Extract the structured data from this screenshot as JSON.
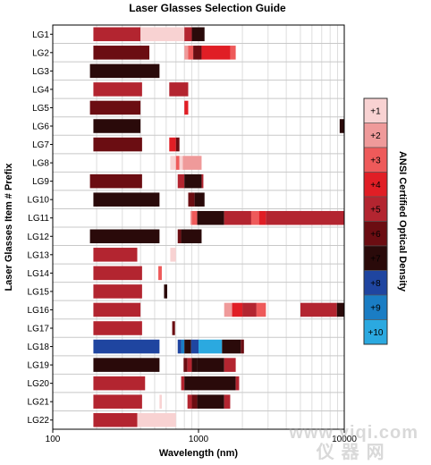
{
  "chart_data": {
    "type": "heatmap",
    "title": "Laser Glasses Selection Guide",
    "xlabel": "Wavelength (nm)",
    "ylabel": "Laser Glasses Item # Prefix",
    "colorbar_label": "ANSI Certified Optical Density",
    "x_scale": "log",
    "xlim": [
      100,
      10000
    ],
    "x_ticks": [
      "100",
      "1000",
      "10000"
    ],
    "legend": [
      {
        "label": "+1",
        "color": "#f8d2d2"
      },
      {
        "label": "+2",
        "color": "#ef9a9a"
      },
      {
        "label": "+3",
        "color": "#ee5a5a"
      },
      {
        "label": "+4",
        "color": "#e01e25"
      },
      {
        "label": "+5",
        "color": "#b32530"
      },
      {
        "label": "+6",
        "color": "#6b0d12"
      },
      {
        "label": "+7",
        "color": "#2a0a0a"
      },
      {
        "label": "+8",
        "color": "#1f45a0"
      },
      {
        "label": "+9",
        "color": "#1a7dc4"
      },
      {
        "label": "+10",
        "color": "#2ba9e0"
      }
    ],
    "rows": [
      {
        "name": "LG1",
        "bands": [
          [
            190,
            400,
            5
          ],
          [
            400,
            800,
            1
          ],
          [
            800,
            900,
            5
          ],
          [
            900,
            1100,
            7
          ]
        ]
      },
      {
        "name": "LG2",
        "bands": [
          [
            190,
            460,
            6
          ],
          [
            800,
            850,
            2
          ],
          [
            850,
            920,
            3
          ],
          [
            920,
            1050,
            6
          ],
          [
            1050,
            1650,
            4
          ],
          [
            1650,
            1800,
            3
          ]
        ]
      },
      {
        "name": "LG3",
        "bands": [
          [
            180,
            540,
            7
          ]
        ]
      },
      {
        "name": "LG4",
        "bands": [
          [
            190,
            410,
            5
          ],
          [
            630,
            850,
            5
          ]
        ]
      },
      {
        "name": "LG5",
        "bands": [
          [
            180,
            400,
            6
          ],
          [
            800,
            850,
            4
          ]
        ]
      },
      {
        "name": "LG6",
        "bands": [
          [
            190,
            400,
            7
          ],
          [
            9300,
            10000,
            7
          ]
        ]
      },
      {
        "name": "LG7",
        "bands": [
          [
            190,
            410,
            6
          ],
          [
            630,
            700,
            4
          ],
          [
            700,
            740,
            6
          ]
        ]
      },
      {
        "name": "LG8",
        "bands": [
          [
            640,
            700,
            1
          ],
          [
            700,
            740,
            3
          ],
          [
            740,
            780,
            1
          ],
          [
            780,
            1050,
            2
          ]
        ]
      },
      {
        "name": "LG9",
        "bands": [
          [
            180,
            410,
            6
          ],
          [
            720,
            800,
            5
          ],
          [
            800,
            1050,
            7
          ],
          [
            1050,
            1080,
            5
          ]
        ]
      },
      {
        "name": "LG10",
        "bands": [
          [
            190,
            540,
            7
          ],
          [
            850,
            940,
            6
          ],
          [
            940,
            1100,
            7
          ]
        ]
      },
      {
        "name": "LG11",
        "bands": [
          [
            880,
            900,
            2
          ],
          [
            900,
            980,
            3
          ],
          [
            980,
            1500,
            7
          ],
          [
            1500,
            2300,
            5
          ],
          [
            2300,
            2600,
            3
          ],
          [
            2600,
            2900,
            4
          ],
          [
            2900,
            10000,
            5
          ]
        ]
      },
      {
        "name": "LG12",
        "bands": [
          [
            180,
            540,
            7
          ],
          [
            720,
            760,
            6
          ],
          [
            760,
            1050,
            7
          ]
        ]
      },
      {
        "name": "LG13",
        "bands": [
          [
            190,
            380,
            5
          ],
          [
            640,
            700,
            1
          ]
        ]
      },
      {
        "name": "LG14",
        "bands": [
          [
            190,
            410,
            5
          ],
          [
            530,
            560,
            3
          ]
        ]
      },
      {
        "name": "LG15",
        "bands": [
          [
            190,
            410,
            5
          ],
          [
            580,
            610,
            7
          ]
        ]
      },
      {
        "name": "LG16",
        "bands": [
          [
            190,
            400,
            5
          ],
          [
            1500,
            1700,
            2
          ],
          [
            1700,
            2000,
            4
          ],
          [
            2000,
            2500,
            5
          ],
          [
            2500,
            2900,
            3
          ],
          [
            5000,
            8900,
            5
          ],
          [
            8900,
            10000,
            7
          ]
        ]
      },
      {
        "name": "LG17",
        "bands": [
          [
            190,
            410,
            5
          ],
          [
            660,
            690,
            6
          ]
        ]
      },
      {
        "name": "LG18",
        "bands": [
          [
            190,
            540,
            8
          ],
          [
            720,
            760,
            8
          ],
          [
            760,
            800,
            9
          ],
          [
            800,
            890,
            7
          ],
          [
            890,
            1000,
            8
          ],
          [
            1000,
            1450,
            10
          ],
          [
            1450,
            1950,
            7
          ],
          [
            1950,
            2050,
            6
          ]
        ]
      },
      {
        "name": "LG19",
        "bands": [
          [
            190,
            540,
            7
          ],
          [
            790,
            840,
            6
          ],
          [
            840,
            900,
            5
          ],
          [
            900,
            980,
            7
          ],
          [
            980,
            1500,
            7
          ],
          [
            1500,
            1800,
            5
          ]
        ]
      },
      {
        "name": "LG20",
        "bands": [
          [
            190,
            430,
            5
          ],
          [
            760,
            800,
            5
          ],
          [
            800,
            1800,
            7
          ],
          [
            1800,
            1900,
            5
          ]
        ]
      },
      {
        "name": "LG21",
        "bands": [
          [
            190,
            410,
            5
          ],
          [
            540,
            560,
            1
          ],
          [
            840,
            900,
            5
          ],
          [
            900,
            980,
            6
          ],
          [
            980,
            1500,
            7
          ],
          [
            1500,
            1650,
            5
          ]
        ]
      },
      {
        "name": "LG22",
        "bands": [
          [
            190,
            380,
            5
          ],
          [
            380,
            700,
            1
          ]
        ]
      }
    ]
  },
  "watermark": {
    "line1": "www.yiqi.com",
    "line2": "仪器网"
  }
}
